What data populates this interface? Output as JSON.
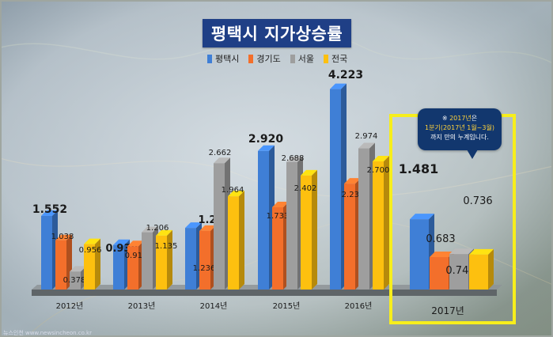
{
  "chart_data": {
    "type": "bar",
    "title": "평택시 지가상승률",
    "categories": [
      "2012년",
      "2013년",
      "2014년",
      "2015년",
      "2016년",
      "2017년"
    ],
    "series": [
      {
        "name": "평택시",
        "color": "#3f7fd6",
        "values": [
          1.552,
          0.938,
          1.298,
          2.92,
          4.223,
          1.481
        ]
      },
      {
        "name": "경기도",
        "color": "#f36f2b",
        "values": [
          1.038,
          0.912,
          1.236,
          1.733,
          2.231,
          0.683
        ]
      },
      {
        "name": "서울",
        "color": "#9e9e9e",
        "values": [
          0.378,
          1.206,
          2.662,
          2.688,
          2.974,
          0.746
        ]
      },
      {
        "name": "전국",
        "color": "#fdc00f",
        "values": [
          0.956,
          1.135,
          1.964,
          2.402,
          2.7,
          0.736
        ]
      }
    ],
    "value_labels": [
      [
        "1.552",
        "1.038",
        "0.378",
        "0.956"
      ],
      [
        "0.938",
        "0.912",
        "1.206",
        "1.135"
      ],
      [
        "1.298",
        "1.236",
        "2.662",
        "1.964"
      ],
      [
        "2.920",
        "1.733",
        "2.688",
        "2.402"
      ],
      [
        "4.223",
        "2.231",
        "2.974",
        "2.700"
      ],
      [
        "1.481",
        "0.683",
        "0.746",
        "0.736"
      ]
    ],
    "ylim": [
      0,
      4.4
    ],
    "grid": false,
    "legend_position": "top-center",
    "highlight_category": "2017년"
  },
  "note": {
    "line1_prefix": "※ ",
    "line1_highlight": "2017년",
    "line1_suffix": "은",
    "line2": "1분기(2017년 1월~3월)",
    "line3": "까지 만의 누계입니다."
  },
  "footer": {
    "credit": "뉴스인천 www.newsincheon.co.kr"
  },
  "colors": {
    "highlight_box": "#f7ee1c",
    "title_bg": "#1f3f86",
    "note_bg": "#12376e"
  }
}
